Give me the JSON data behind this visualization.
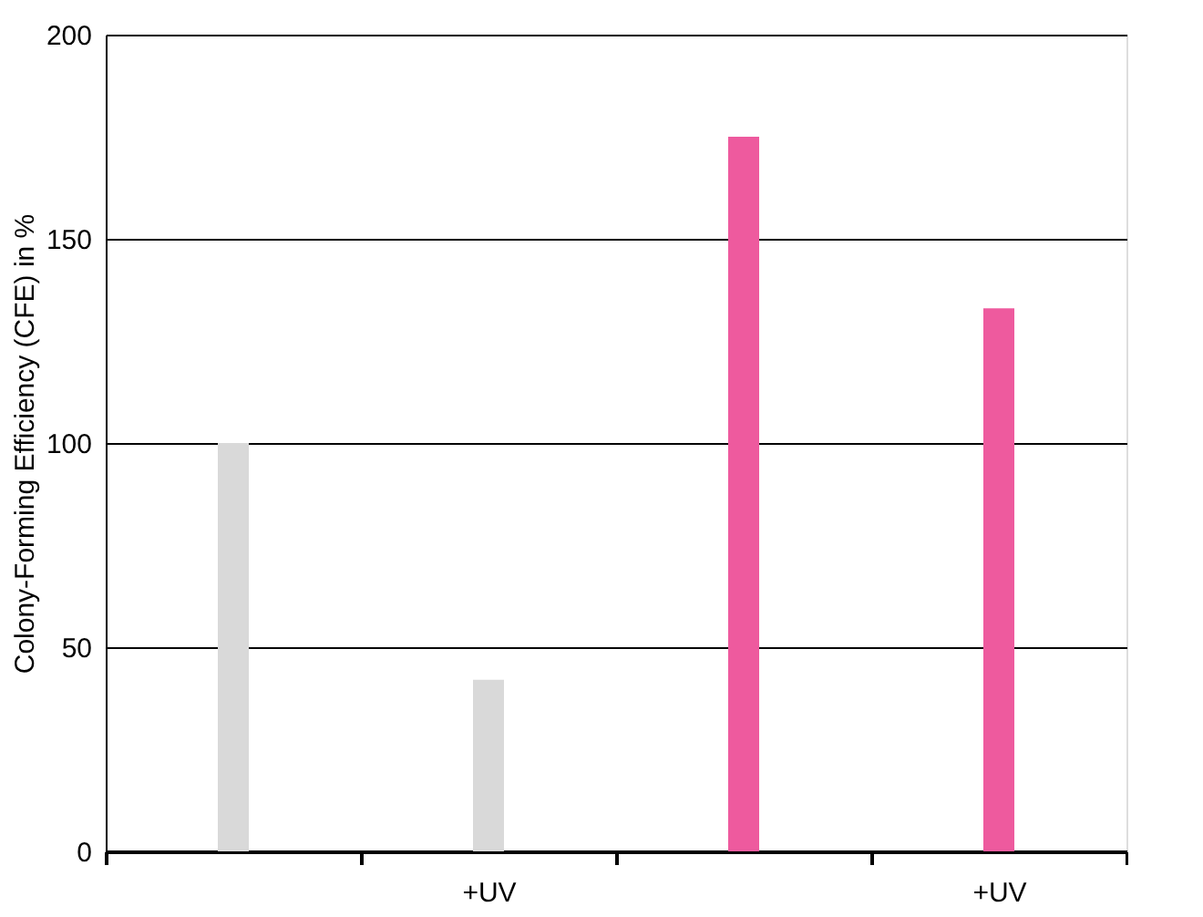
{
  "chart_data": {
    "type": "bar",
    "ylabel": "Colony-Forming Efficiency (CFE) in %",
    "categories": [
      null,
      "+UV",
      null,
      "+UV"
    ],
    "values": [
      100,
      42,
      175,
      133
    ],
    "colors": [
      "#d9d9d9",
      "#d9d9d9",
      "#ee5a9e",
      "#ee5a9e"
    ],
    "ylim": [
      0,
      200
    ],
    "yticks": [
      0,
      50,
      100,
      150,
      200
    ],
    "grid": "y"
  }
}
